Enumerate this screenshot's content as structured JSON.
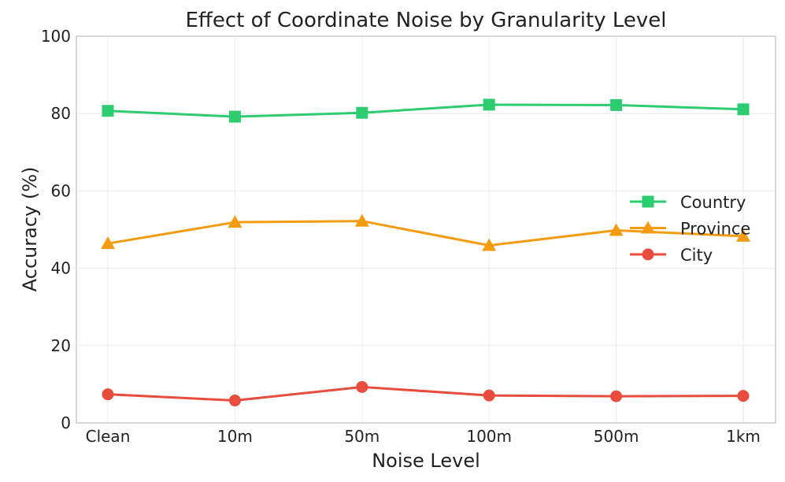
{
  "chart_data": {
    "type": "line",
    "title": "Effect of Coordinate Noise by Granularity Level",
    "xlabel": "Noise Level",
    "ylabel": "Accuracy (%)",
    "categories": [
      "Clean",
      "10m",
      "50m",
      "100m",
      "500m",
      "1km"
    ],
    "ylim": [
      0,
      100
    ],
    "yticks": [
      0,
      20,
      40,
      60,
      80,
      100
    ],
    "grid": true,
    "legend_position": "center-right",
    "series": [
      {
        "name": "Country",
        "color": "#2ecc71",
        "marker": "square",
        "values": [
          80.7,
          79.2,
          80.2,
          82.3,
          82.2,
          81.1
        ]
      },
      {
        "name": "Province",
        "color": "#f39c12",
        "marker": "triangle",
        "values": [
          46.4,
          51.9,
          52.2,
          45.9,
          49.8,
          48.3
        ]
      },
      {
        "name": "City",
        "color": "#e74c3c",
        "marker": "circle",
        "values": [
          7.4,
          5.8,
          9.3,
          7.1,
          6.9,
          7.0
        ]
      }
    ]
  }
}
